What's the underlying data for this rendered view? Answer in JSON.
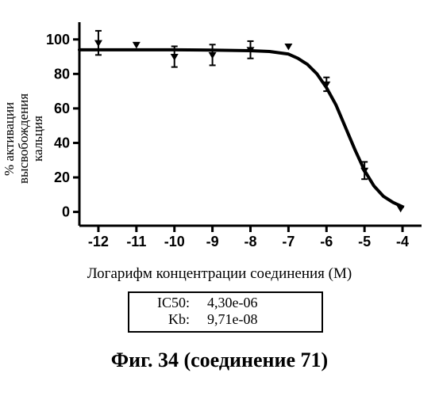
{
  "chart": {
    "type": "line",
    "background_color": "#ffffff",
    "axis_color": "#000000",
    "curve_color": "#000000",
    "marker_color": "#000000",
    "marker_style": "triangle-down",
    "marker_size": 5,
    "curve_width": 4,
    "axis_width": 3,
    "tick_length": 8,
    "tick_width": 3,
    "tick_font_size": 18,
    "label_font_size": 18,
    "xlim": [
      -12.5,
      -3.5
    ],
    "ylim": [
      -8,
      110
    ],
    "xtick_values": [
      -12,
      -11,
      -10,
      -9,
      -8,
      -7,
      -6,
      -5,
      -4
    ],
    "xtick_labels": [
      "-12",
      "-11",
      "-10",
      "-9",
      "-8",
      "-7",
      "-6",
      "-5",
      "-4"
    ],
    "ytick_values": [
      0,
      20,
      40,
      60,
      80,
      100
    ],
    "ytick_labels": [
      "0",
      "20",
      "40",
      "60",
      "80",
      "100"
    ],
    "xlabel": "Логарифм концентрации соединения (M)",
    "ylabel": "% активации\nвысвобождения\nкальция",
    "points": [
      {
        "x": -12,
        "y": 98,
        "err": 7
      },
      {
        "x": -11,
        "y": 97,
        "err": 0
      },
      {
        "x": -10,
        "y": 90,
        "err": 6
      },
      {
        "x": -9,
        "y": 91,
        "err": 6
      },
      {
        "x": -8,
        "y": 94,
        "err": 5
      },
      {
        "x": -7,
        "y": 96,
        "err": 0
      },
      {
        "x": -6,
        "y": 74,
        "err": 4
      },
      {
        "x": -5,
        "y": 24,
        "err": 5
      },
      {
        "x": -4.05,
        "y": 2,
        "err": 0
      }
    ],
    "curve_samples": [
      {
        "x": -12.5,
        "y": 94.0
      },
      {
        "x": -12.0,
        "y": 94.0
      },
      {
        "x": -11.0,
        "y": 94.0
      },
      {
        "x": -10.0,
        "y": 94.0
      },
      {
        "x": -9.0,
        "y": 93.8
      },
      {
        "x": -8.0,
        "y": 93.5
      },
      {
        "x": -7.5,
        "y": 93.0
      },
      {
        "x": -7.0,
        "y": 91.5
      },
      {
        "x": -6.75,
        "y": 89.0
      },
      {
        "x": -6.5,
        "y": 85.5
      },
      {
        "x": -6.25,
        "y": 80.0
      },
      {
        "x": -6.0,
        "y": 72.0
      },
      {
        "x": -5.75,
        "y": 62.0
      },
      {
        "x": -5.5,
        "y": 49.0
      },
      {
        "x": -5.25,
        "y": 36.0
      },
      {
        "x": -5.0,
        "y": 24.0
      },
      {
        "x": -4.75,
        "y": 15.0
      },
      {
        "x": -4.5,
        "y": 9.0
      },
      {
        "x": -4.25,
        "y": 5.5
      },
      {
        "x": -4.0,
        "y": 3.0
      }
    ]
  },
  "params": {
    "ic50_label": "IC50:",
    "ic50_value": "4,30e-06",
    "kb_label": "Kb:",
    "kb_value": "9,71e-08"
  },
  "caption": "Фиг. 34 (соединение 71)"
}
